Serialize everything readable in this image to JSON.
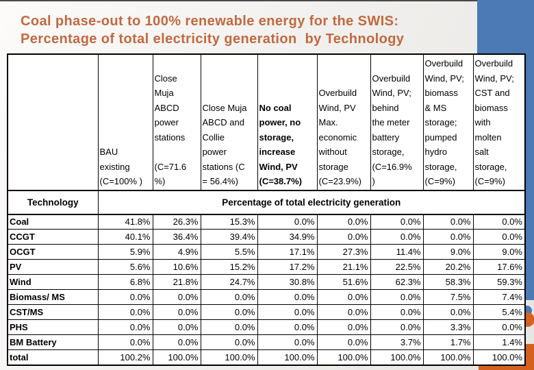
{
  "slide_title": "Coal phase-out to 100% renewable energy for the SWIS:\nPercentage of total electricity generation  by Technology",
  "colors": {
    "title_text": "#C2693E",
    "accent_blue": "#4B7AB4",
    "accent_orange": "#D4621E",
    "table_border": "#000000",
    "table_background": "#FFFFFF"
  },
  "table": {
    "corner": "",
    "row_header": "Technology",
    "data_header": "Percentage of total electricity generation",
    "scenarios": [
      {
        "text": "BAU\nexisting\n(C=100% )",
        "emphasis": false
      },
      {
        "text": "Close\nMuja\nABCD\npower\nstations\n\n(C=71.6\n%)",
        "emphasis": false
      },
      {
        "text": "Close Muja\nABCD and\nCollie\npower\nstations (C\n= 56.4%)",
        "emphasis": false
      },
      {
        "text": "No coal\npower, no\nstorage,\nincrease\nWind, PV\n(C=38.7%)",
        "emphasis": true
      },
      {
        "text": "Overbuild\nWind, PV\nMax.\neconomic\nwithout\nstorage\n(C=23.9%)",
        "emphasis": false
      },
      {
        "text": "Overbuild\nWind, PV;\nbehind\nthe meter\nbattery\nstorage,\n(C=16.9%\n)",
        "emphasis": false
      },
      {
        "text": "Overbuild\nWind, PV;\nbiomass\n& MS\nstorage;\npumped\nhydro\nstorage,\n(C=9%)",
        "emphasis": false
      },
      {
        "text": "Overbuild\nWind, PV;\nCST and\nbiomass\nwith\nmolten\nsalt\nstorage,\n(C=9%)",
        "emphasis": false
      }
    ],
    "rows": [
      {
        "label": "Coal",
        "values": [
          "41.8%",
          "26.3%",
          "15.3%",
          "0.0%",
          "0.0%",
          "0.0%",
          "0.0%",
          "0.0%"
        ]
      },
      {
        "label": "CCGT",
        "values": [
          "40.1%",
          "36.4%",
          "39.4%",
          "34.9%",
          "0.0%",
          "0.0%",
          "0.0%",
          "0.0%"
        ]
      },
      {
        "label": "OCGT",
        "values": [
          "5.9%",
          "4.9%",
          "5.5%",
          "17.1%",
          "27.3%",
          "11.4%",
          "9.0%",
          "9.0%"
        ]
      },
      {
        "label": "PV",
        "values": [
          "5.6%",
          "10.6%",
          "15.2%",
          "17.2%",
          "21.1%",
          "22.5%",
          "20.2%",
          "17.6%"
        ]
      },
      {
        "label": "Wind",
        "values": [
          "6.8%",
          "21.8%",
          "24.7%",
          "30.8%",
          "51.6%",
          "62.3%",
          "58.3%",
          "59.3%"
        ]
      },
      {
        "label": "Biomass/ MS",
        "values": [
          "0.0%",
          "0.0%",
          "0.0%",
          "0.0%",
          "0.0%",
          "0.0%",
          "7.5%",
          "7.4%"
        ]
      },
      {
        "label": "CST/MS",
        "values": [
          "0.0%",
          "0.0%",
          "0.0%",
          "0.0%",
          "0.0%",
          "0.0%",
          "0.0%",
          "5.4%"
        ]
      },
      {
        "label": "PHS",
        "values": [
          "0.0%",
          "0.0%",
          "0.0%",
          "0.0%",
          "0.0%",
          "0.0%",
          "3.3%",
          "0.0%"
        ]
      },
      {
        "label": "BM Battery",
        "values": [
          "0.0%",
          "0.0%",
          "0.0%",
          "0.0%",
          "0.0%",
          "3.7%",
          "1.7%",
          "1.4%"
        ]
      },
      {
        "label": "total",
        "values": [
          "100.2%",
          "100.0%",
          "100.0%",
          "100.0%",
          "100.0%",
          "100.0%",
          "100.0%",
          "100.0%"
        ]
      }
    ]
  }
}
